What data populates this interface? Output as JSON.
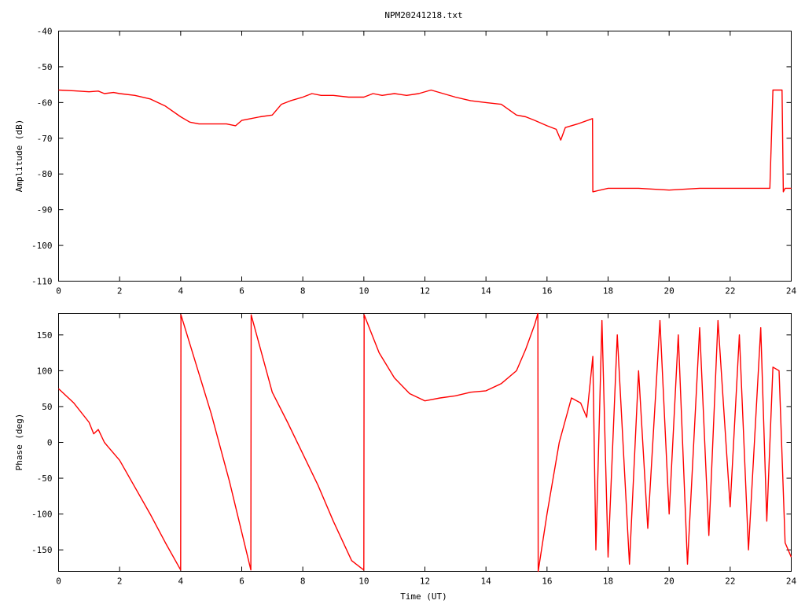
{
  "title": "NPM20241218.txt",
  "colors": {
    "trace": "#ff0000",
    "axes": "#000000",
    "background": "#ffffff"
  },
  "chart_data": [
    {
      "type": "line",
      "panel": "amplitude",
      "title": "NPM20241218.txt",
      "xlabel": "",
      "ylabel": "Amplitude (dB)",
      "xlim": [
        0,
        24
      ],
      "ylim": [
        -110,
        -40
      ],
      "x_ticks": [
        0,
        2,
        4,
        6,
        8,
        10,
        12,
        14,
        16,
        18,
        20,
        22,
        24
      ],
      "y_ticks": [
        -40,
        -50,
        -60,
        -70,
        -80,
        -90,
        -100,
        -110
      ],
      "x_tick_labels": [
        "0",
        "2",
        "4",
        "6",
        "8",
        "10",
        "12",
        "14",
        "16",
        "18",
        "20",
        "22",
        "24"
      ],
      "y_tick_labels": [
        "-40",
        "-50",
        "-60",
        "-70",
        "-80",
        "-90",
        "-100",
        "-110"
      ],
      "grid": false,
      "series": [
        {
          "x": [
            0,
            0.5,
            1,
            1.3,
            1.5,
            1.8,
            2,
            2.5,
            3,
            3.5,
            4,
            4.3,
            4.6,
            5,
            5.5,
            5.8,
            6,
            6.3,
            6.6,
            7,
            7.3,
            7.6,
            8,
            8.3,
            8.6,
            9,
            9.5,
            10,
            10.3,
            10.6,
            11,
            11.4,
            11.8,
            12.2,
            12.6,
            13,
            13.5,
            14,
            14.5,
            15,
            15.3,
            15.6,
            16,
            16.3,
            16.45,
            16.6,
            17,
            17.49,
            17.5,
            18,
            19,
            20,
            21,
            22,
            23,
            23.3,
            23.4,
            23.5,
            23.7,
            23.74,
            23.8,
            24
          ],
          "y": [
            -56.5,
            -56.7,
            -57,
            -56.8,
            -57.5,
            -57.2,
            -57.5,
            -58,
            -59,
            -61,
            -64,
            -65.5,
            -66,
            -66,
            -66,
            -66.5,
            -65,
            -64.5,
            -64,
            -63.5,
            -60.5,
            -59.5,
            -58.5,
            -57.5,
            -58,
            -58,
            -58.5,
            -58.5,
            -57.5,
            -58,
            -57.5,
            -58,
            -57.5,
            -56.5,
            -57.5,
            -58.5,
            -59.5,
            -60,
            -60.5,
            -63.5,
            -64,
            -65,
            -66.5,
            -67.5,
            -70.5,
            -67,
            -66,
            -64.5,
            -85,
            -84,
            -84,
            -84.5,
            -84,
            -84,
            -84,
            -84,
            -56.5,
            -56.5,
            -56.5,
            -85,
            -84,
            -84
          ]
        }
      ]
    },
    {
      "type": "line",
      "panel": "phase",
      "title": "",
      "xlabel": "Time (UT)",
      "ylabel": "Phase (deg)",
      "xlim": [
        0,
        24
      ],
      "ylim": [
        -180,
        180
      ],
      "x_ticks": [
        0,
        2,
        4,
        6,
        8,
        10,
        12,
        14,
        16,
        18,
        20,
        22,
        24
      ],
      "y_ticks": [
        150,
        100,
        50,
        0,
        -50,
        -100,
        -150
      ],
      "x_tick_labels": [
        "0",
        "2",
        "4",
        "6",
        "8",
        "10",
        "12",
        "14",
        "16",
        "18",
        "20",
        "22",
        "24"
      ],
      "y_tick_labels": [
        "150",
        "100",
        "50",
        "0",
        "-50",
        "-100",
        "-150"
      ],
      "grid": false,
      "series": [
        {
          "x": [
            0,
            0.5,
            1,
            1.15,
            1.3,
            1.5,
            1.6,
            2,
            3,
            3.5,
            4,
            4.01,
            5,
            5.6,
            6.3,
            6.31,
            7,
            7.5,
            8.5,
            9,
            9.6,
            9.9,
            10,
            10.01,
            10.5,
            11,
            11.5,
            12,
            12.5,
            13,
            13.5,
            14,
            14.5,
            15,
            15.3,
            15.6,
            15.7,
            15.71,
            16,
            16.4,
            16.8,
            17.1,
            17.3,
            17.5,
            17.6,
            17.8,
            18,
            18.3,
            18.7,
            19,
            19.3,
            19.7,
            20,
            20.3,
            20.6,
            21,
            21.3,
            21.6,
            22,
            22.3,
            22.6,
            23,
            23.2,
            23.4,
            23.6,
            23.8,
            24
          ],
          "y": [
            75,
            55,
            28,
            12,
            18,
            0,
            -5,
            -25,
            -100,
            -140,
            -178,
            178,
            40,
            -55,
            -178,
            178,
            70,
            28,
            -60,
            -110,
            -165,
            -175,
            -178,
            178,
            125,
            90,
            68,
            58,
            62,
            65,
            70,
            72,
            82,
            100,
            130,
            165,
            180,
            -180,
            -100,
            0,
            62,
            55,
            35,
            120,
            -150,
            170,
            -160,
            150,
            -170,
            100,
            -120,
            170,
            -100,
            150,
            -170,
            160,
            -130,
            170,
            -90,
            150,
            -150,
            160,
            -110,
            105,
            100,
            -140,
            -160
          ]
        }
      ]
    }
  ]
}
